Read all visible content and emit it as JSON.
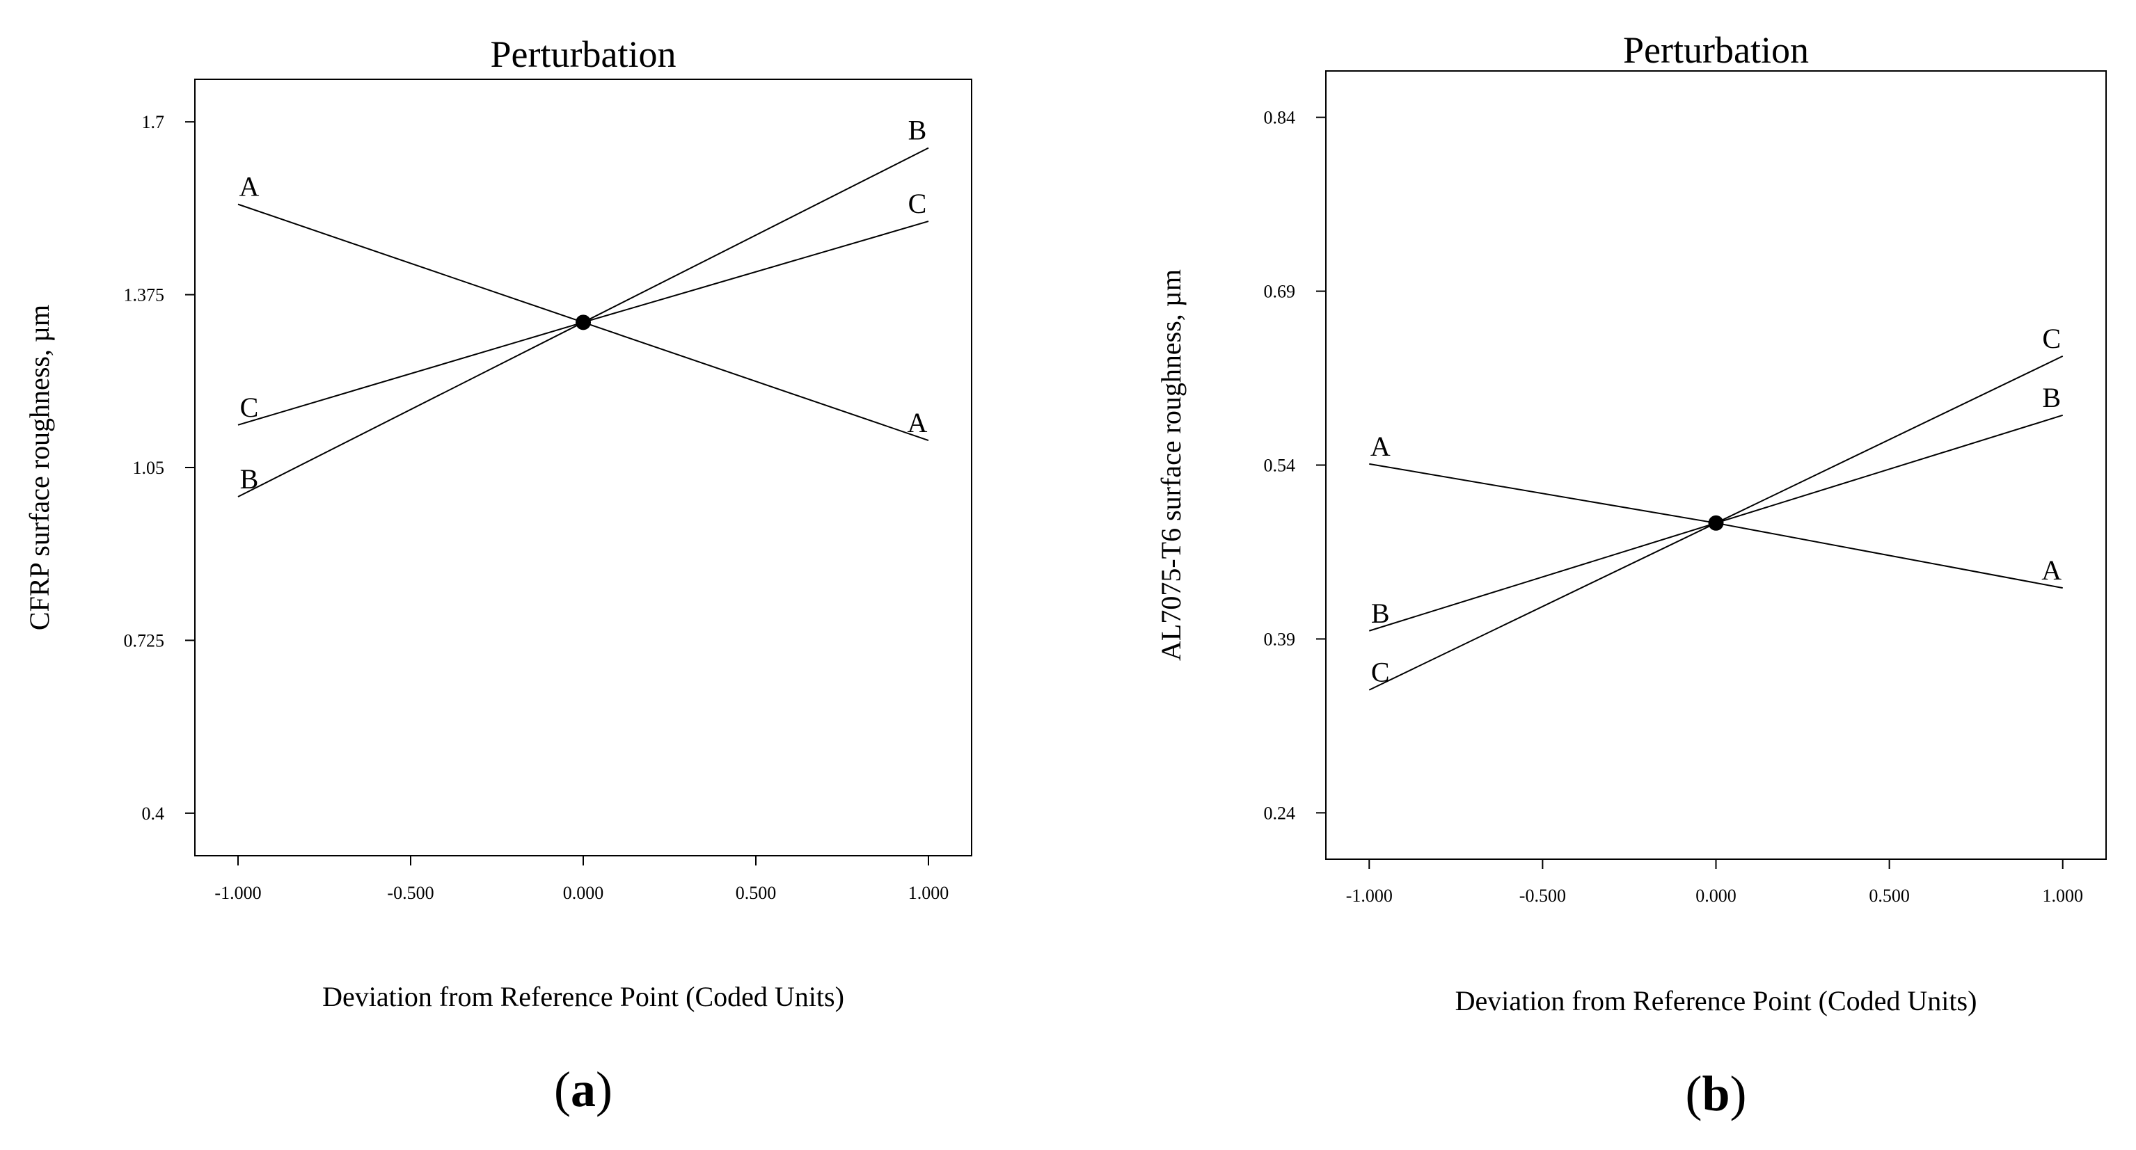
{
  "colors": {
    "line": "#000000",
    "frame": "#000000",
    "background": "#ffffff"
  },
  "chart_data": [
    {
      "type": "line",
      "panel_label": "a",
      "title": "Perturbation",
      "xlabel": "Deviation from Reference Point (Coded Units)",
      "ylabel": "CFRP surface roughness, µm",
      "xlim": [
        -1.125,
        1.125
      ],
      "ylim": [
        0.32,
        1.78
      ],
      "x_ticks": [
        -1.0,
        -0.5,
        0.0,
        0.5,
        1.0
      ],
      "x_tick_labels": [
        "-1.000",
        "-0.500",
        "0.000",
        "0.500",
        "1.000"
      ],
      "y_ticks": [
        0.4,
        0.725,
        1.05,
        1.375,
        1.7
      ],
      "y_tick_labels": [
        "0.4",
        "0.725",
        "1.05",
        "1.375",
        "1.7"
      ],
      "reference_point": {
        "x": 0.0,
        "y": 1.323
      },
      "x": [
        -1.0,
        0.0,
        1.0
      ],
      "series": [
        {
          "name": "A",
          "values": [
            1.545,
            1.323,
            1.101
          ],
          "label_left": "A",
          "label_right": "A"
        },
        {
          "name": "B",
          "values": [
            0.995,
            1.323,
            1.651
          ],
          "label_left": "B",
          "label_right": "B"
        },
        {
          "name": "C",
          "values": [
            1.13,
            1.323,
            1.513
          ],
          "label_left": "C",
          "label_right": "C"
        }
      ]
    },
    {
      "type": "line",
      "panel_label": "b",
      "title": "Perturbation",
      "xlabel": "Deviation from Reference Point (Coded Units)",
      "ylabel": "AL7075-T6 surface roughness, µm",
      "xlim": [
        -1.125,
        1.125
      ],
      "ylim": [
        0.2,
        0.88
      ],
      "x_ticks": [
        -1.0,
        -0.5,
        0.0,
        0.5,
        1.0
      ],
      "x_tick_labels": [
        "-1.000",
        "-0.500",
        "0.000",
        "0.500",
        "1.000"
      ],
      "y_ticks": [
        0.24,
        0.39,
        0.54,
        0.69,
        0.84
      ],
      "y_tick_labels": [
        "0.24",
        "0.39",
        "0.54",
        "0.69",
        "0.84"
      ],
      "reference_point": {
        "x": 0.0,
        "y": 0.49
      },
      "x": [
        -1.0,
        0.0,
        1.0
      ],
      "series": [
        {
          "name": "A",
          "values": [
            0.541,
            0.49,
            0.434
          ],
          "label_left": "A",
          "label_right": "A"
        },
        {
          "name": "B",
          "values": [
            0.397,
            0.49,
            0.583
          ],
          "label_left": "B",
          "label_right": "B"
        },
        {
          "name": "C",
          "values": [
            0.346,
            0.49,
            0.634
          ],
          "label_left": "C",
          "label_right": "C"
        }
      ]
    }
  ]
}
